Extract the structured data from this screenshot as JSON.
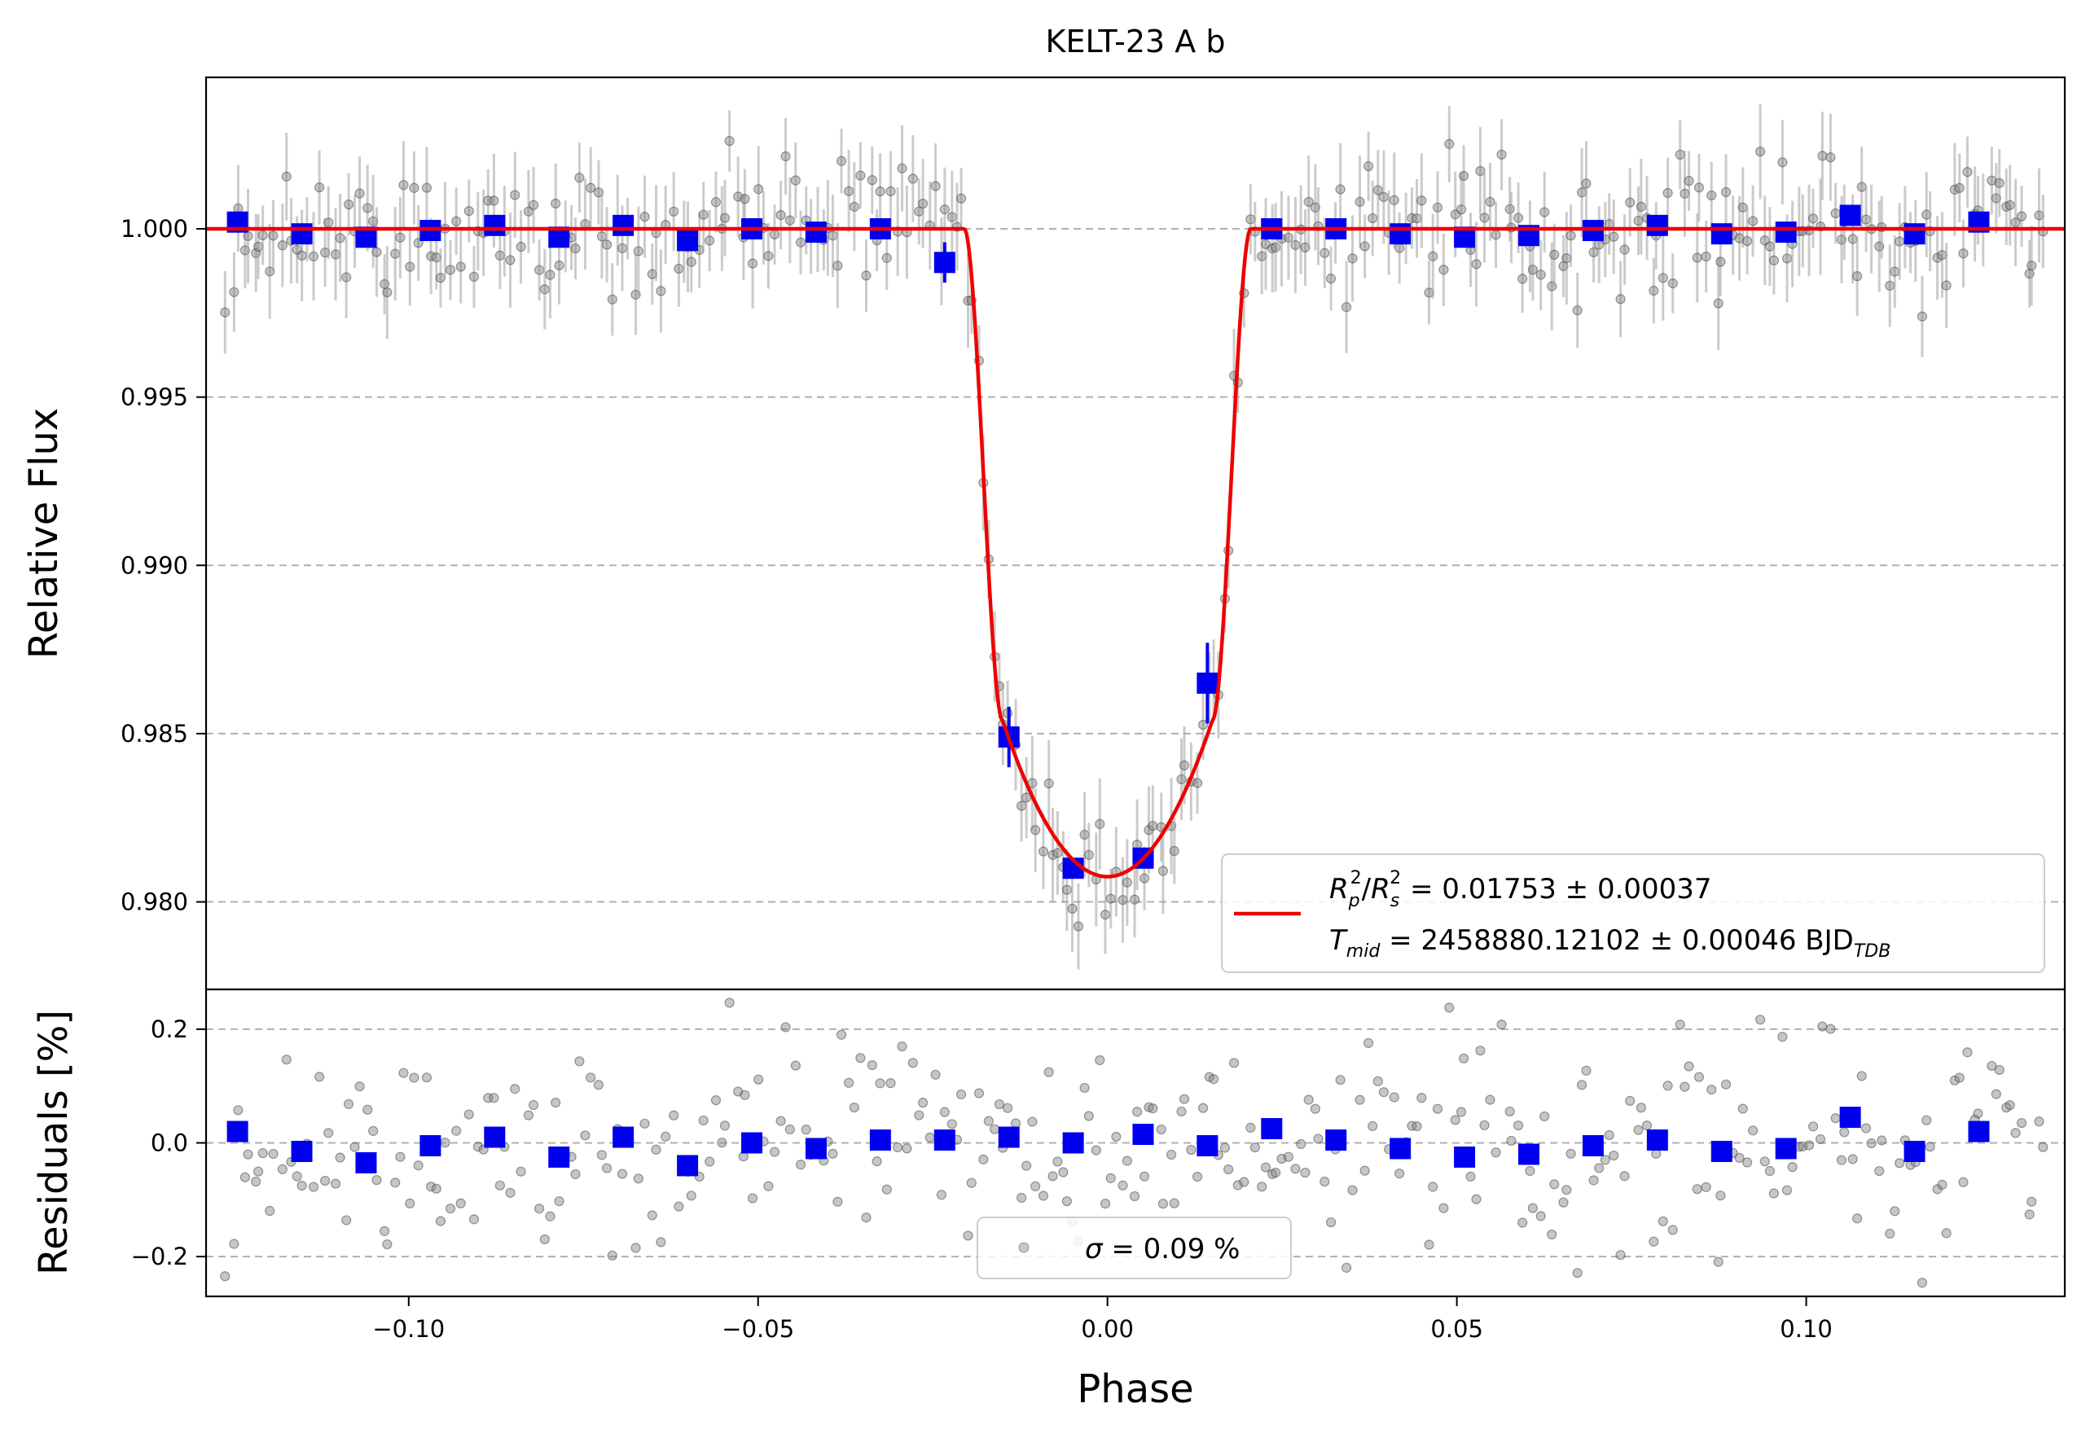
{
  "chart_data": {
    "type": "scatter",
    "title": "KELT-23 A b",
    "xlabel": "Phase",
    "xlim": [
      -0.129,
      0.137
    ],
    "x_ticks": [
      -0.1,
      -0.05,
      0.0,
      0.05,
      0.1
    ],
    "x_tick_labels": [
      "−0.10",
      "−0.05",
      "0.00",
      "0.05",
      "0.10"
    ],
    "grid": "horizontal dashed",
    "panels": {
      "flux": {
        "ylabel": "Relative Flux",
        "ylim": [
          0.9774,
          1.0045
        ],
        "y_ticks": [
          0.98,
          0.985,
          0.99,
          0.995,
          1.0
        ],
        "y_tick_labels": [
          "0.980",
          "0.985",
          "0.990",
          "0.995",
          "1.000"
        ],
        "legend": {
          "placement": "lower-right",
          "line1": {
            "r1": "R",
            "r1_sub": "p",
            "r1_sup": "2",
            "slash": "/",
            "r2": "R",
            "r2_sub": "s",
            "r2_sup": "2",
            "rest": " = 0.01753 ± 0.00037"
          },
          "line2": {
            "t": "T",
            "t_sub": "mid",
            "rest": " = 2458880.12102 ± 0.00046 BJD",
            "unit_sub": "TDB"
          }
        },
        "model": {
          "name": "transit model",
          "color": "#ee0000",
          "depth": 0.01925,
          "transit_halfwidth": 0.0205,
          "ingress_duration": 0.0055
        },
        "binned": {
          "color": "#0000ee",
          "x": [
            -0.1245,
            -0.1153,
            -0.1061,
            -0.0969,
            -0.0877,
            -0.0785,
            -0.0693,
            -0.0601,
            -0.0509,
            -0.0417,
            -0.0325,
            -0.0233,
            -0.0141,
            -0.0049,
            0.0051,
            0.0143,
            0.0235,
            0.0327,
            0.0419,
            0.0511,
            0.0603,
            0.0695,
            0.0787,
            0.0879,
            0.0971,
            0.1063,
            0.1155,
            0.1247
          ],
          "y": [
            1.0002,
            0.99985,
            0.99975,
            0.99995,
            1.0001,
            0.99975,
            1.0001,
            0.99965,
            1.0,
            0.9999,
            1.0,
            0.999,
            0.9849,
            0.981,
            0.9813,
            0.9865,
            1.0,
            1.0,
            0.99985,
            0.99975,
            0.9998,
            0.99995,
            1.0001,
            0.99985,
            0.9999,
            1.0004,
            0.99985,
            1.0002
          ],
          "yerr": [
            0.0002,
            0.0002,
            0.0002,
            0.0002,
            0.0002,
            0.0002,
            0.0002,
            0.0002,
            0.0002,
            0.0002,
            0.0002,
            0.0006,
            0.0009,
            0.0002,
            0.0002,
            0.0012,
            0.0002,
            0.0002,
            0.0002,
            0.0002,
            0.0002,
            0.0002,
            0.0002,
            0.0002,
            0.0002,
            0.0002,
            0.0002,
            0.0002
          ]
        },
        "raw": {
          "color": "#808080",
          "n_points": 340,
          "scatter": 0.0009,
          "typical_error": 0.0011
        }
      },
      "residuals": {
        "ylabel": "Residuals [%]",
        "ylim": [
          -0.27,
          0.27
        ],
        "y_ticks": [
          -0.2,
          0.0,
          0.2
        ],
        "y_tick_labels": [
          "−0.2",
          "0.0",
          "0.2"
        ],
        "legend": {
          "placement": "lower-center",
          "sigma": "σ",
          "rest": " = 0.09 %"
        },
        "binned": {
          "color": "#0000ee",
          "x": [
            -0.1245,
            -0.1153,
            -0.1061,
            -0.0969,
            -0.0877,
            -0.0785,
            -0.0693,
            -0.0601,
            -0.0509,
            -0.0417,
            -0.0325,
            -0.0233,
            -0.0141,
            -0.0049,
            0.0051,
            0.0143,
            0.0235,
            0.0327,
            0.0419,
            0.0511,
            0.0603,
            0.0695,
            0.0787,
            0.0879,
            0.0971,
            0.1063,
            0.1155,
            0.1247
          ],
          "y": [
            0.02,
            -0.015,
            -0.035,
            -0.005,
            0.01,
            -0.025,
            0.01,
            -0.04,
            0.0,
            -0.01,
            0.005,
            0.005,
            0.01,
            0.0,
            0.015,
            -0.005,
            0.025,
            0.005,
            -0.01,
            -0.025,
            -0.02,
            -0.005,
            0.005,
            -0.015,
            -0.01,
            0.045,
            -0.015,
            0.02
          ]
        },
        "raw": {
          "color": "#808080",
          "scatter": 0.085
        }
      }
    }
  }
}
